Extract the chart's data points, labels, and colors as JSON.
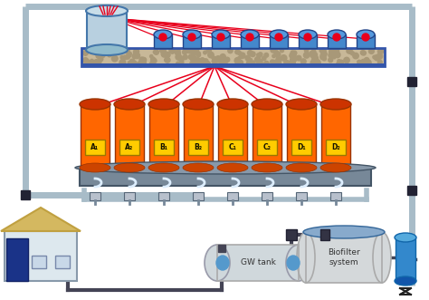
{
  "bg_color": "#ffffff",
  "pipe_frame_color": "#a8bcc8",
  "pipe_dark": "#444455",
  "red_line_color": "#e8001c",
  "tank_orange": "#ff6600",
  "tank_top_orange": "#cc3300",
  "tank_label_bg": "#ffcc00",
  "tank_labels": [
    "A₁",
    "A₂",
    "B₁",
    "B₂",
    "C₁",
    "C₂",
    "D₁",
    "D₂"
  ],
  "spray_nozzle_color": "#4488cc",
  "trough_bottom": "#3355aa",
  "gravel_color": "#c8b898",
  "collector_color": "#778898",
  "collector_dark": "#445566",
  "house_wall": "#dde8ee",
  "house_roof": "#d4b860",
  "house_door": "#1a3388",
  "house_window": "#c8d8e8",
  "gw_tank_color": "#d0d8dc",
  "biofilter_color": "#d4d8da",
  "biofilter_top": "#88aacc",
  "small_tank_color": "#3388cc",
  "valve_color": "#b8c0cc",
  "water_tank_body": "#b8d0e0",
  "water_tank_top": "#c8dde8"
}
